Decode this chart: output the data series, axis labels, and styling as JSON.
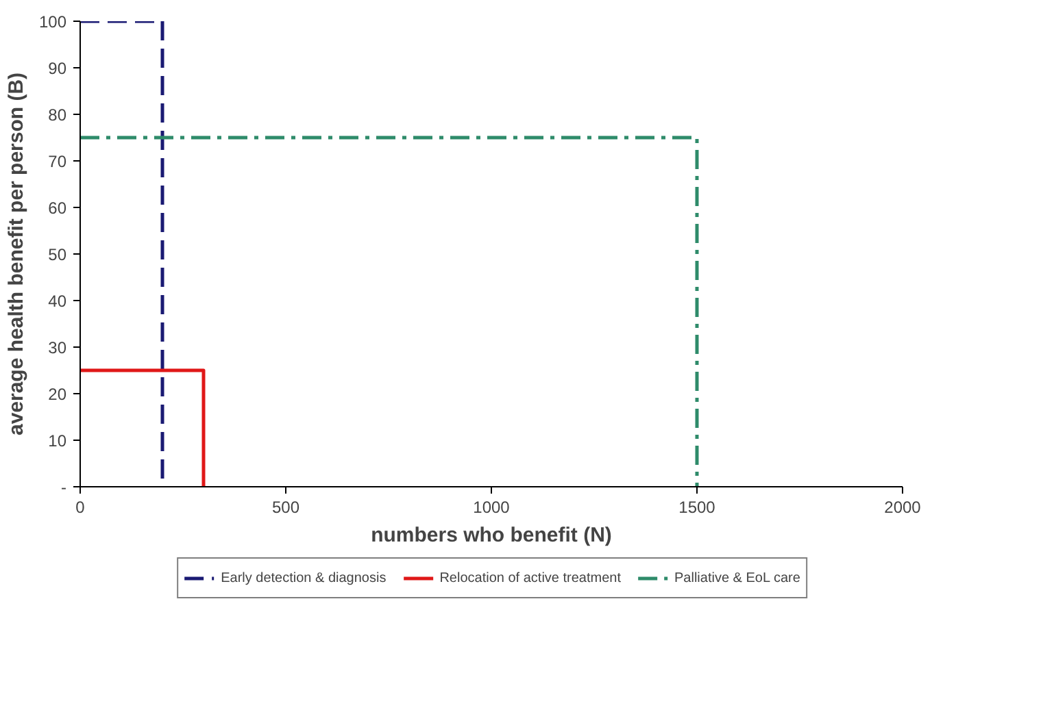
{
  "chart_data": {
    "type": "line",
    "xlabel": "numbers who benefit (N)",
    "ylabel": "average health benefit per person (B)",
    "xlim": [
      0,
      2000
    ],
    "xticks": [
      0,
      500,
      1000,
      1500,
      2000
    ],
    "ylim": [
      0,
      100
    ],
    "yticks": [
      {
        "value": 0,
        "label": "-"
      },
      10,
      20,
      30,
      40,
      50,
      60,
      70,
      80,
      90,
      100
    ],
    "grid": false,
    "legend": "bottom",
    "series": [
      {
        "name": "Early detection & diagnosis",
        "color": "#1a1a73",
        "line_style": "dashed",
        "x": [
          0,
          200,
          200
        ],
        "values": [
          100,
          100,
          0
        ]
      },
      {
        "name": "Relocation of active treatment",
        "color": "#e01818",
        "line_style": "solid",
        "x": [
          0,
          300,
          300
        ],
        "values": [
          25,
          25,
          0
        ]
      },
      {
        "name": "Palliative & EoL care",
        "color": "#2e8b6a",
        "line_style": "dashdot",
        "x": [
          0,
          1500,
          1500
        ],
        "values": [
          75,
          75,
          0
        ]
      }
    ]
  }
}
